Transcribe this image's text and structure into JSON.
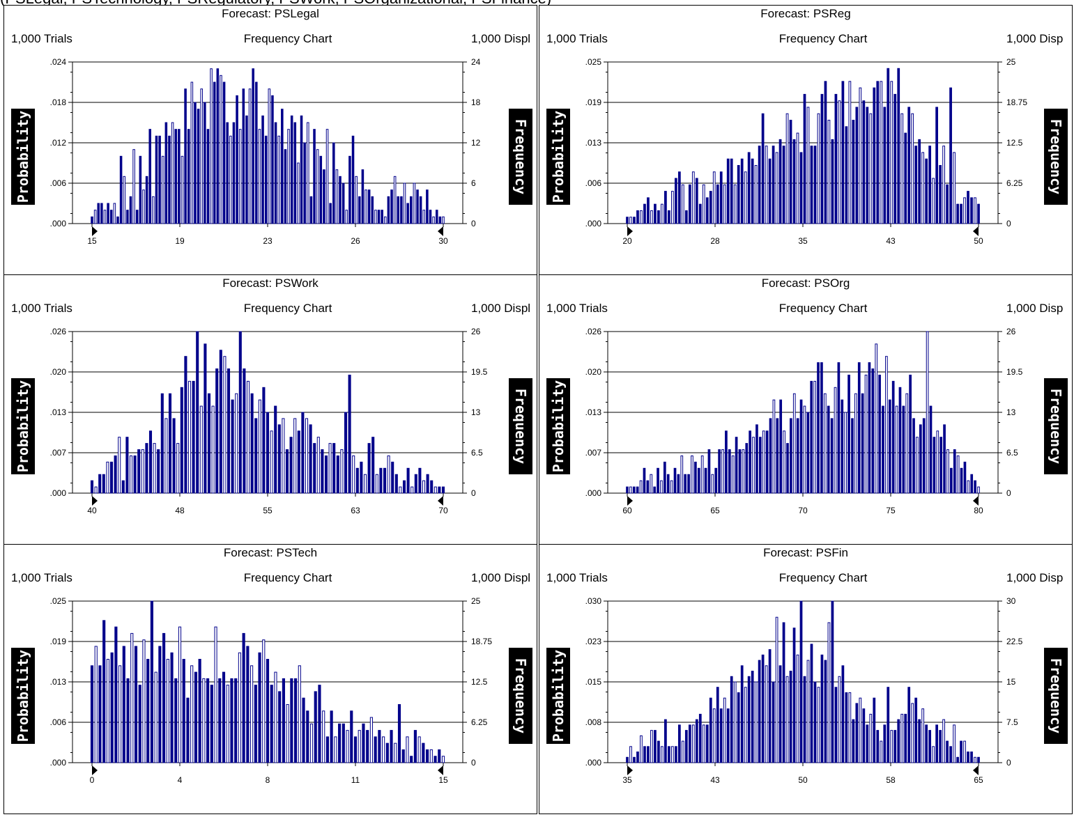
{
  "header_fragment": "(PSLegal, PSTechnology, PSRegulatory, PSWork, PSOrganizational, PSFinance)",
  "colors": {
    "bar": "#00008B",
    "frame": "#000000",
    "label_bg": "#000000",
    "label_fg": "#FFFFFF"
  },
  "panels": [
    {
      "title": "Forecast: PSLegal",
      "trials": "1,000 Trials",
      "subtitle": "Frequency Chart",
      "display": "1,000 Displ",
      "ylabel": "Probability",
      "y2label": "Frequency",
      "yticks": [
        ".024",
        ".018",
        ".012",
        ".006",
        ".000"
      ],
      "y2ticks": [
        "24",
        "18",
        "12",
        "6",
        "0"
      ],
      "xticks": [
        "15",
        "19",
        "23",
        "26",
        "30"
      ]
    },
    {
      "title": "Forecast: PSReg",
      "trials": "1,000 Trials",
      "subtitle": "Frequency Chart",
      "display": "1,000 Disp",
      "ylabel": "Probability",
      "y2label": "Frequency",
      "yticks": [
        ".025",
        ".019",
        ".013",
        ".006",
        ".000"
      ],
      "y2ticks": [
        "25",
        "18.75",
        "12.5",
        "6.25",
        "0"
      ],
      "xticks": [
        "20",
        "28",
        "35",
        "43",
        "50"
      ]
    },
    {
      "title": "Forecast: PSWork",
      "trials": "1,000 Trials",
      "subtitle": "Frequency Chart",
      "display": "1,000 Displ",
      "ylabel": "Probability",
      "y2label": "Frequency",
      "yticks": [
        ".026",
        ".020",
        ".013",
        ".007",
        ".000"
      ],
      "y2ticks": [
        "26",
        "19.5",
        "13",
        "6.5",
        "0"
      ],
      "xticks": [
        "40",
        "48",
        "55",
        "63",
        "70"
      ]
    },
    {
      "title": "Forecast: PSOrg",
      "trials": "1,000 Trials",
      "subtitle": "Frequency Chart",
      "display": "1,000 Disp",
      "ylabel": "Probability",
      "y2label": "Frequency",
      "yticks": [
        ".026",
        ".020",
        ".013",
        ".007",
        ".000"
      ],
      "y2ticks": [
        "26",
        "19.5",
        "13",
        "6.5",
        "0"
      ],
      "xticks": [
        "60",
        "65",
        "70",
        "75",
        "80"
      ]
    },
    {
      "title": "Forecast: PSTech",
      "trials": "1,000 Trials",
      "subtitle": "Frequency Chart",
      "display": "1,000 Displ",
      "ylabel": "Probability",
      "y2label": "Frequency",
      "yticks": [
        ".025",
        ".019",
        ".013",
        ".006",
        ".000"
      ],
      "y2ticks": [
        "25",
        "18.75",
        "12.5",
        "6.25",
        "0"
      ],
      "xticks": [
        "0",
        "4",
        "8",
        "11",
        "15"
      ]
    },
    {
      "title": "Forecast: PSFin",
      "trials": "1,000 Trials",
      "subtitle": "Frequency Chart",
      "display": "1,000 Disp",
      "ylabel": "Probability",
      "y2label": "Frequency",
      "yticks": [
        ".030",
        ".023",
        ".015",
        ".008",
        ".000"
      ],
      "y2ticks": [
        "30",
        "22.5",
        "15",
        "7.5",
        "0"
      ],
      "xticks": [
        "35",
        "43",
        "50",
        "58",
        "65"
      ]
    }
  ],
  "chart_data": [
    {
      "type": "bar",
      "title": "Forecast: PSLegal",
      "xlabel": "",
      "ylabel": "Probability",
      "y2label": "Frequency",
      "ylim": [
        0,
        0.024
      ],
      "xlim": [
        15,
        30
      ],
      "y2lim": [
        0,
        24
      ],
      "values": [
        1,
        2,
        3,
        3,
        2,
        3,
        2,
        3,
        1,
        10,
        7,
        2,
        4,
        11,
        2,
        10,
        5,
        7,
        14,
        4,
        13,
        13,
        10,
        15,
        13,
        15,
        14,
        14,
        10,
        20,
        14,
        21,
        18,
        17,
        20,
        18,
        14,
        23,
        21,
        23,
        22,
        21,
        15,
        13,
        15,
        19,
        14,
        20,
        16,
        20,
        23,
        21,
        14,
        16,
        13,
        20,
        19,
        15,
        13,
        17,
        11,
        14,
        16,
        15,
        9,
        16,
        12,
        15,
        4,
        14,
        11,
        10,
        8,
        14,
        3,
        12,
        8,
        7,
        6,
        2,
        10,
        13,
        7,
        4,
        8,
        5,
        5,
        4,
        2,
        2,
        2,
        1,
        4,
        5,
        7,
        4,
        4,
        6,
        3,
        4,
        6,
        5,
        4,
        2,
        5,
        2,
        1,
        2,
        1,
        1
      ],
      "bar_count": 110
    },
    {
      "type": "bar",
      "title": "Forecast: PSReg",
      "xlabel": "",
      "ylabel": "Probability",
      "y2label": "Frequency",
      "ylim": [
        0,
        0.025
      ],
      "xlim": [
        20,
        50
      ],
      "y2lim": [
        0,
        25
      ],
      "values": [
        1,
        1,
        1,
        2,
        2,
        3,
        4,
        2,
        3,
        2,
        3,
        5,
        2,
        5,
        7,
        8,
        6,
        2,
        6,
        8,
        7,
        3,
        6,
        4,
        5,
        8,
        6,
        8,
        6,
        10,
        10,
        6,
        9,
        10,
        8,
        11,
        10,
        9,
        12,
        17,
        12,
        10,
        12,
        11,
        13,
        12,
        17,
        16,
        13,
        14,
        11,
        20,
        18,
        12,
        12,
        17,
        20,
        22,
        16,
        13,
        20,
        19,
        22,
        15,
        22,
        16,
        18,
        21,
        19,
        18,
        17,
        21,
        22,
        22,
        18,
        24,
        22,
        20,
        24,
        17,
        14,
        18,
        17,
        12,
        13,
        11,
        10,
        12,
        7,
        18,
        9,
        12,
        6,
        21,
        11,
        3,
        3,
        4,
        5,
        4,
        4,
        3
      ],
      "bar_count": 102
    },
    {
      "type": "bar",
      "title": "Forecast: PSWork",
      "xlabel": "",
      "ylabel": "Probability",
      "y2label": "Frequency",
      "ylim": [
        0,
        0.026
      ],
      "xlim": [
        40,
        70
      ],
      "y2lim": [
        0,
        26
      ],
      "values": [
        2,
        1,
        3,
        3,
        5,
        5,
        6,
        9,
        2,
        9,
        6,
        6,
        7,
        7,
        8,
        10,
        8,
        7,
        16,
        12,
        16,
        12,
        8,
        17,
        22,
        18,
        18,
        26,
        14,
        24,
        16,
        14,
        20,
        23,
        22,
        20,
        15,
        16,
        26,
        20,
        18,
        16,
        12,
        15,
        17,
        13,
        10,
        14,
        11,
        12,
        7,
        9,
        12,
        10,
        13,
        12,
        11,
        8,
        9,
        7,
        6,
        8,
        8,
        6,
        7,
        13,
        19,
        6,
        4,
        5,
        3,
        8,
        9,
        3,
        4,
        4,
        6,
        5,
        3,
        1,
        2,
        4,
        1,
        3,
        4,
        2,
        3,
        2,
        1,
        1,
        1
      ],
      "bar_count": 91
    },
    {
      "type": "bar",
      "title": "Forecast: PSOrg",
      "xlabel": "",
      "ylabel": "Probability",
      "y2label": "Frequency",
      "ylim": [
        0,
        0.026
      ],
      "xlim": [
        60,
        80
      ],
      "y2lim": [
        0,
        26
      ],
      "values": [
        1,
        1,
        1,
        1,
        2,
        4,
        2,
        3,
        1,
        4,
        2,
        5,
        3,
        2,
        4,
        3,
        6,
        3,
        3,
        6,
        5,
        4,
        6,
        4,
        7,
        3,
        4,
        7,
        7,
        10,
        7,
        6,
        9,
        7,
        7,
        8,
        10,
        9,
        11,
        9,
        10,
        10,
        12,
        15,
        12,
        15,
        10,
        8,
        12,
        16,
        12,
        15,
        14,
        13,
        18,
        18,
        21,
        21,
        16,
        14,
        12,
        17,
        21,
        15,
        13,
        19,
        12,
        16,
        21,
        16,
        19,
        21,
        20,
        24,
        19,
        14,
        22,
        15,
        18,
        14,
        17,
        14,
        16,
        19,
        12,
        9,
        11,
        12,
        26,
        14,
        9,
        10,
        9,
        11,
        7,
        4,
        7,
        6,
        4,
        5,
        2,
        3,
        2,
        1
      ],
      "bar_count": 104
    },
    {
      "type": "bar",
      "title": "Forecast: PSTech",
      "xlabel": "",
      "ylabel": "Probability",
      "y2label": "Frequency",
      "ylim": [
        0,
        0.025
      ],
      "xlim": [
        0,
        15
      ],
      "y2lim": [
        0,
        25
      ],
      "values": [
        15,
        18,
        15,
        22,
        16,
        17,
        21,
        15,
        18,
        13,
        20,
        18,
        12,
        19,
        16,
        25,
        14,
        18,
        20,
        16,
        17,
        13,
        21,
        16,
        10,
        15,
        14,
        16,
        13,
        13,
        12,
        21,
        13,
        14,
        12,
        13,
        13,
        17,
        20,
        18,
        15,
        12,
        17,
        19,
        16,
        12,
        14,
        11,
        13,
        9,
        13,
        13,
        15,
        10,
        8,
        6,
        11,
        12,
        8,
        4,
        8,
        4,
        6,
        6,
        5,
        8,
        4,
        5,
        6,
        5,
        7,
        4,
        5,
        4,
        3,
        5,
        3,
        9,
        2,
        4,
        1,
        5,
        4,
        3,
        2,
        2,
        1,
        2,
        1
      ],
      "bar_count": 89
    },
    {
      "type": "bar",
      "title": "Forecast: PSFin",
      "xlabel": "",
      "ylabel": "Probability",
      "y2label": "Frequency",
      "ylim": [
        0,
        0.03
      ],
      "xlim": [
        35,
        65
      ],
      "y2lim": [
        0,
        30
      ],
      "values": [
        1,
        3,
        1,
        2,
        5,
        3,
        3,
        6,
        6,
        4,
        3,
        8,
        3,
        3,
        3,
        7,
        4,
        6,
        7,
        7,
        8,
        9,
        7,
        7,
        12,
        10,
        14,
        10,
        12,
        10,
        16,
        15,
        13,
        18,
        14,
        16,
        17,
        15,
        19,
        20,
        18,
        21,
        15,
        27,
        18,
        26,
        16,
        17,
        25,
        20,
        30,
        16,
        19,
        22,
        15,
        14,
        20,
        19,
        26,
        30,
        14,
        16,
        18,
        13,
        13,
        8,
        11,
        12,
        10,
        7,
        9,
        12,
        6,
        4,
        7,
        14,
        6,
        6,
        8,
        9,
        9,
        14,
        11,
        12,
        8,
        10,
        7,
        6,
        3,
        7,
        6,
        8,
        4,
        3,
        7,
        1,
        4,
        4,
        2,
        2,
        1,
        1
      ],
      "bar_count": 102
    }
  ]
}
